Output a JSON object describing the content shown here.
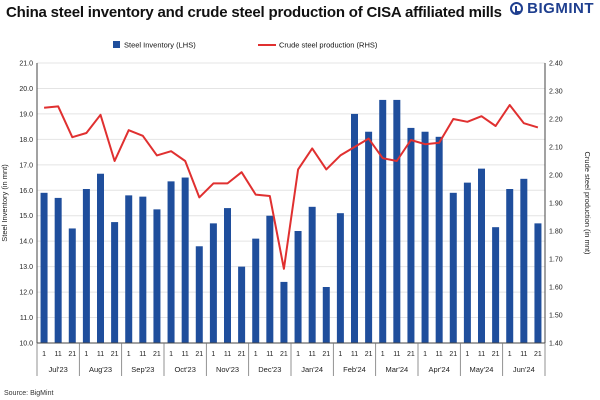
{
  "title": "China steel inventory and crude steel production of CISA affiliated mills",
  "brand": "BIGMINT",
  "source": "Source: BigMint",
  "colors": {
    "bar": "#1f4e9c",
    "line": "#e03030",
    "grid": "#e4e4e4",
    "axis": "#444444"
  },
  "chart_data": {
    "type": "bar",
    "title": "China steel inventory and crude steel production of CISA affiliated mills",
    "categories": [
      "1",
      "11",
      "21",
      "1",
      "11",
      "21",
      "1",
      "11",
      "21",
      "1",
      "11",
      "21",
      "1",
      "11",
      "21",
      "1",
      "11",
      "21",
      "1",
      "11",
      "21",
      "1",
      "11",
      "21",
      "1",
      "11",
      "21",
      "1",
      "11",
      "21",
      "1",
      "11",
      "21",
      "1",
      "11",
      "21"
    ],
    "groups": [
      "Jul'23",
      "Aug'23",
      "Sep'23",
      "Oct'23",
      "Nov'23",
      "Dec'23",
      "Jan'24",
      "Feb'24",
      "Mar'24",
      "Apr'24",
      "May'24",
      "Jun'24"
    ],
    "series": [
      {
        "name": "Steel Inventory (LHS)",
        "type": "bar",
        "axis": "left",
        "values": [
          15.9,
          15.7,
          14.5,
          16.05,
          16.65,
          14.75,
          15.8,
          15.75,
          15.25,
          16.35,
          16.5,
          13.8,
          14.7,
          15.3,
          13.0,
          14.1,
          15.0,
          12.4,
          14.4,
          15.35,
          12.2,
          15.1,
          19.0,
          18.3,
          19.55,
          19.55,
          18.45,
          18.3,
          18.1,
          15.9,
          16.3,
          16.85,
          14.55,
          16.05,
          16.45,
          14.7
        ]
      },
      {
        "name": "Crude steel production (RHS)",
        "type": "line",
        "axis": "right",
        "values": [
          2.24,
          2.245,
          2.135,
          2.15,
          2.215,
          2.05,
          2.16,
          2.14,
          2.07,
          2.085,
          2.05,
          1.92,
          1.97,
          1.97,
          2.01,
          1.93,
          1.925,
          1.665,
          2.02,
          2.095,
          2.02,
          2.07,
          2.1,
          2.13,
          2.06,
          2.05,
          2.125,
          2.11,
          2.115,
          2.2,
          2.19,
          2.21,
          2.175,
          2.25,
          2.185,
          2.17
        ]
      }
    ],
    "ylabel": "Steel Inventory (in mnt)",
    "y2label": "Crude steel production (in mnt)",
    "ylim": [
      10.0,
      21.0
    ],
    "y2lim": [
      1.4,
      2.4
    ],
    "yticks": [
      "10.0",
      "11.0",
      "12.0",
      "13.0",
      "14.0",
      "15.0",
      "16.0",
      "17.0",
      "18.0",
      "19.0",
      "20.0",
      "21.0"
    ],
    "y2ticks": [
      "1.40",
      "1.50",
      "1.60",
      "1.70",
      "1.80",
      "1.90",
      "2.00",
      "2.10",
      "2.20",
      "2.30",
      "2.40"
    ],
    "grid": true,
    "legend_position": "top-center"
  }
}
